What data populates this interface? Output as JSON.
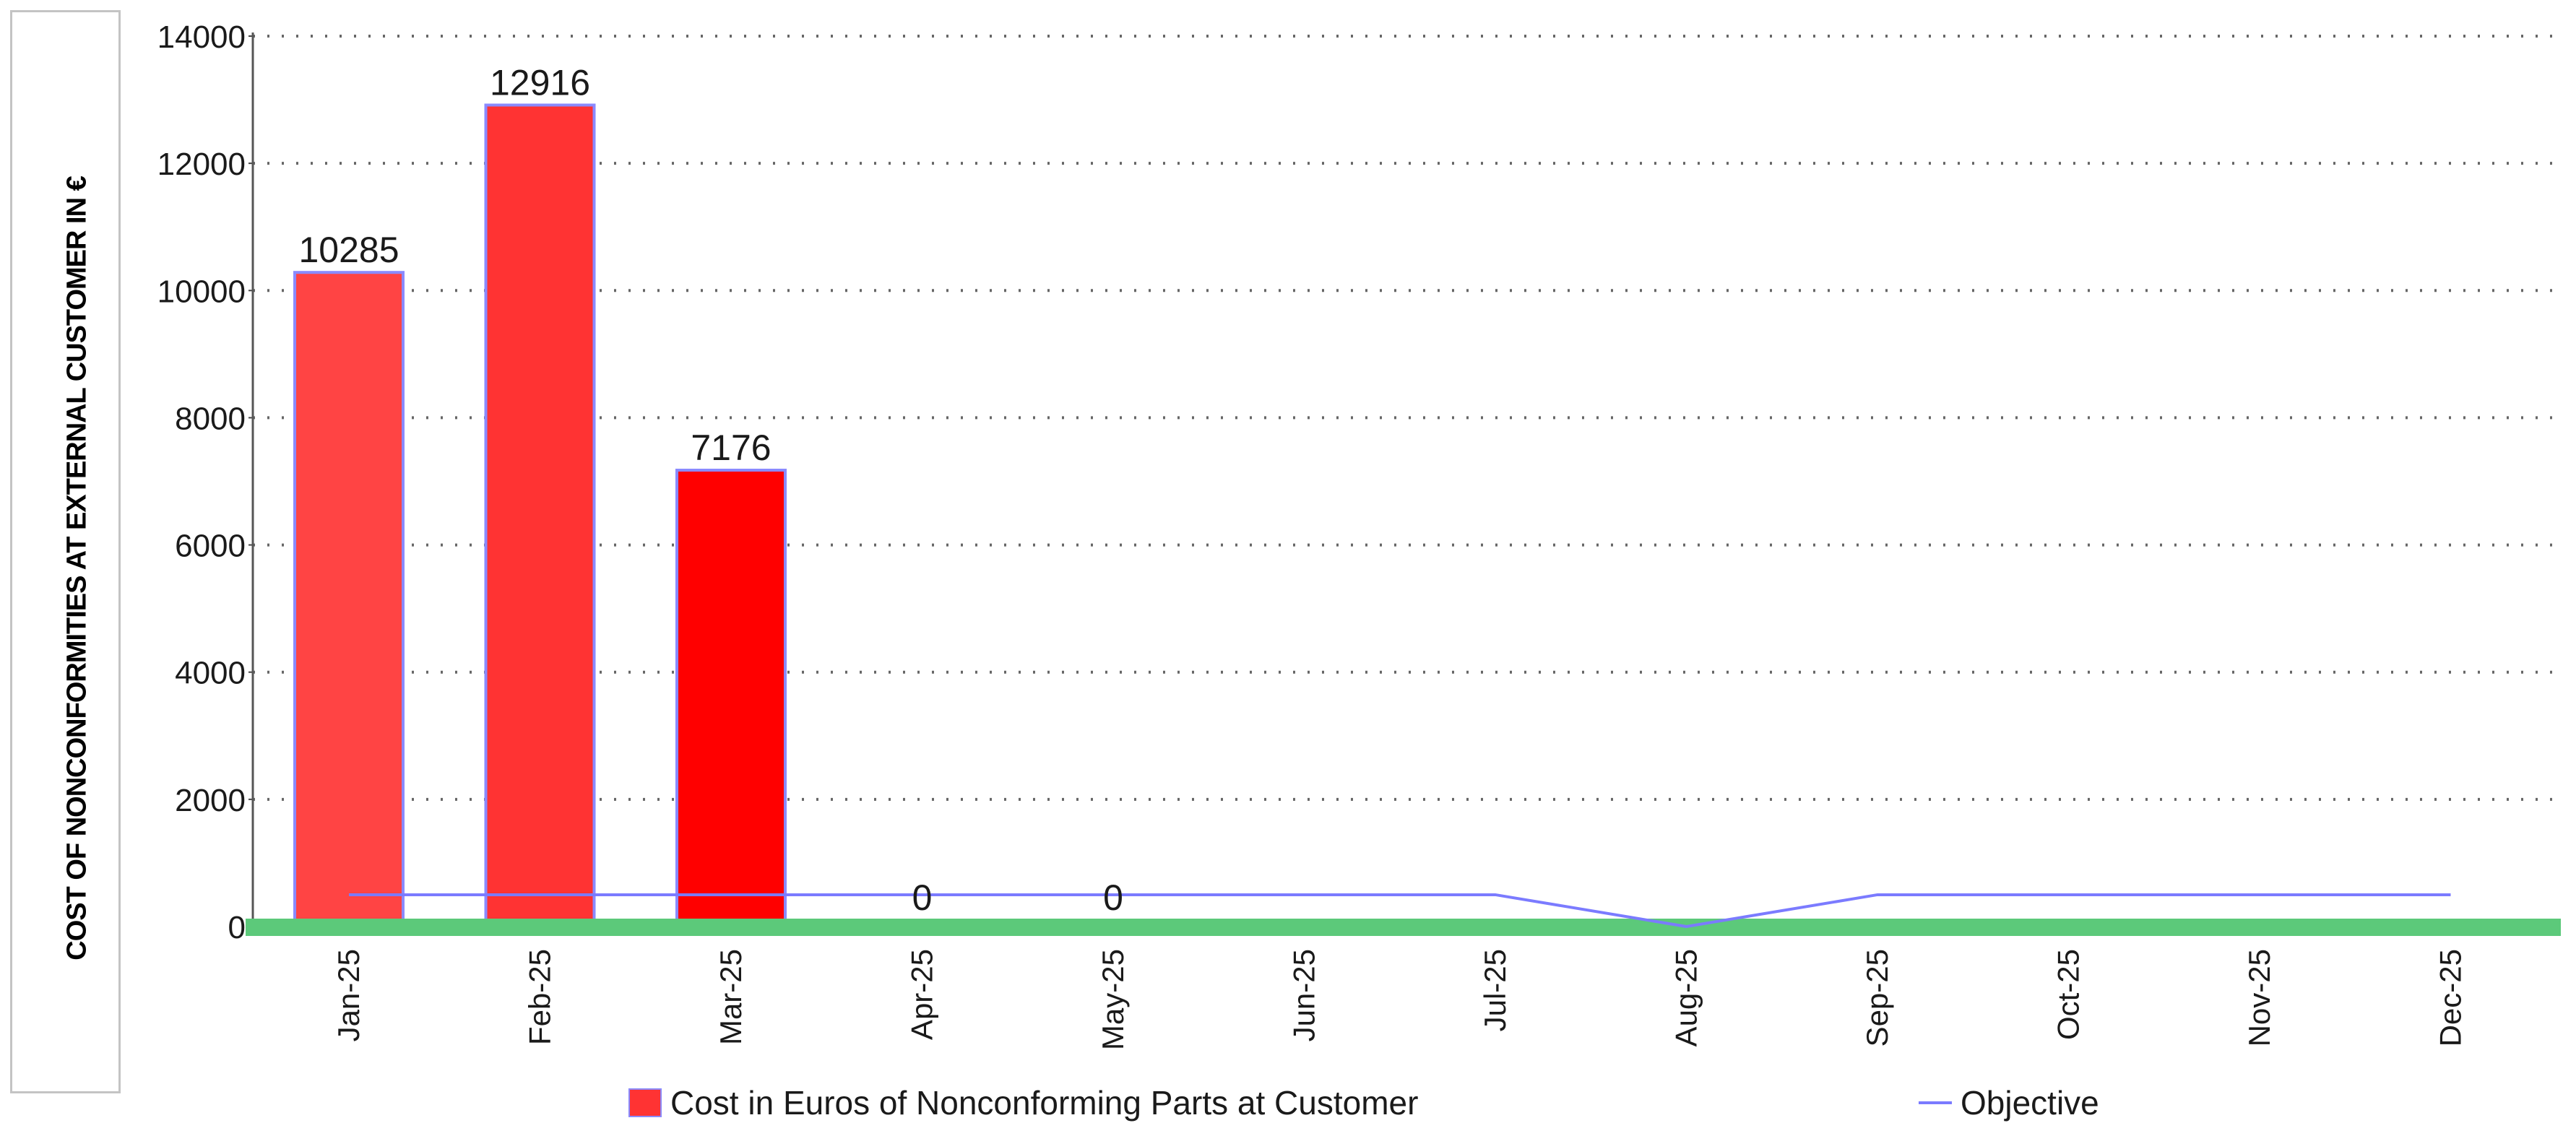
{
  "chart_data": {
    "type": "bar",
    "ylabel": "COST OF NONCONFORMITIES AT EXTERNAL CUSTOMER IN €",
    "xlabel": "",
    "ylim": [
      0,
      14000
    ],
    "yticks": [
      0,
      2000,
      4000,
      6000,
      8000,
      10000,
      12000,
      14000
    ],
    "categories": [
      "Jan-25",
      "Feb-25",
      "Mar-25",
      "Apr-25",
      "May-25",
      "Jun-25",
      "Jul-25",
      "Aug-25",
      "Sep-25",
      "Oct-25",
      "Nov-25",
      "Dec-25"
    ],
    "series": [
      {
        "name": "Cost in Euros of Nonconforming Parts at Customer",
        "kind": "bar",
        "values": [
          10285,
          12916,
          7176,
          0,
          0,
          null,
          null,
          null,
          null,
          null,
          null,
          null
        ],
        "labels": [
          "10285",
          "12916",
          "7176",
          "0",
          "0",
          "",
          "",
          "",
          "",
          "",
          "",
          ""
        ],
        "colors": [
          "#ff4444",
          "#ff3333",
          "#ff0000"
        ],
        "border": "#8a8aff"
      },
      {
        "name": "Objective",
        "kind": "line",
        "values": [
          500,
          500,
          500,
          500,
          500,
          500,
          500,
          0,
          500,
          500,
          500,
          500
        ],
        "color": "#7b7bff"
      }
    ],
    "grid": true,
    "baseline_color": "#5cc97a",
    "legend": "bottom"
  }
}
